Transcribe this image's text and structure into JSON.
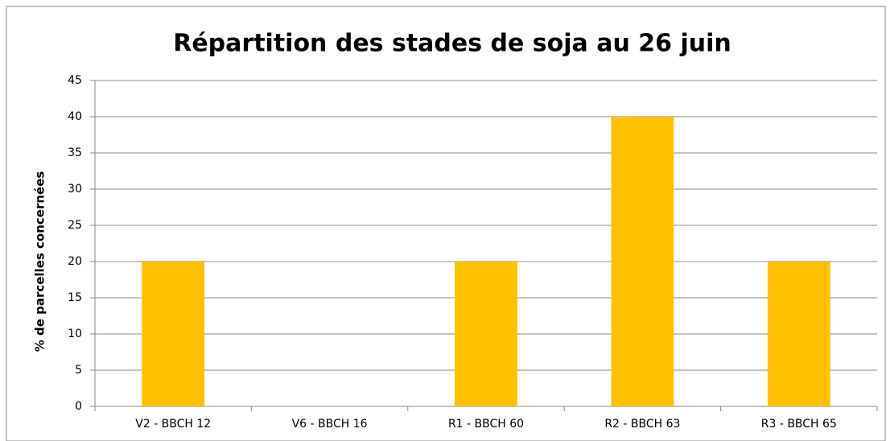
{
  "chart_data": {
    "type": "bar",
    "title": "Répartition des stades de soja au 26 juin",
    "y_label": "% de parcelles concernées",
    "categories": [
      "V2 - BBCH 12",
      "V6 - BBCH 16",
      "R1 - BBCH 60",
      "R2 - BBCH 63",
      "R3 - BBCH 65"
    ],
    "values": [
      20,
      0,
      20,
      40,
      20
    ],
    "color": "#ffc000",
    "ylim": [
      0,
      45
    ],
    "yticks": [
      0,
      5,
      10,
      15,
      20,
      25,
      30,
      35,
      40,
      45
    ],
    "grid": true
  }
}
